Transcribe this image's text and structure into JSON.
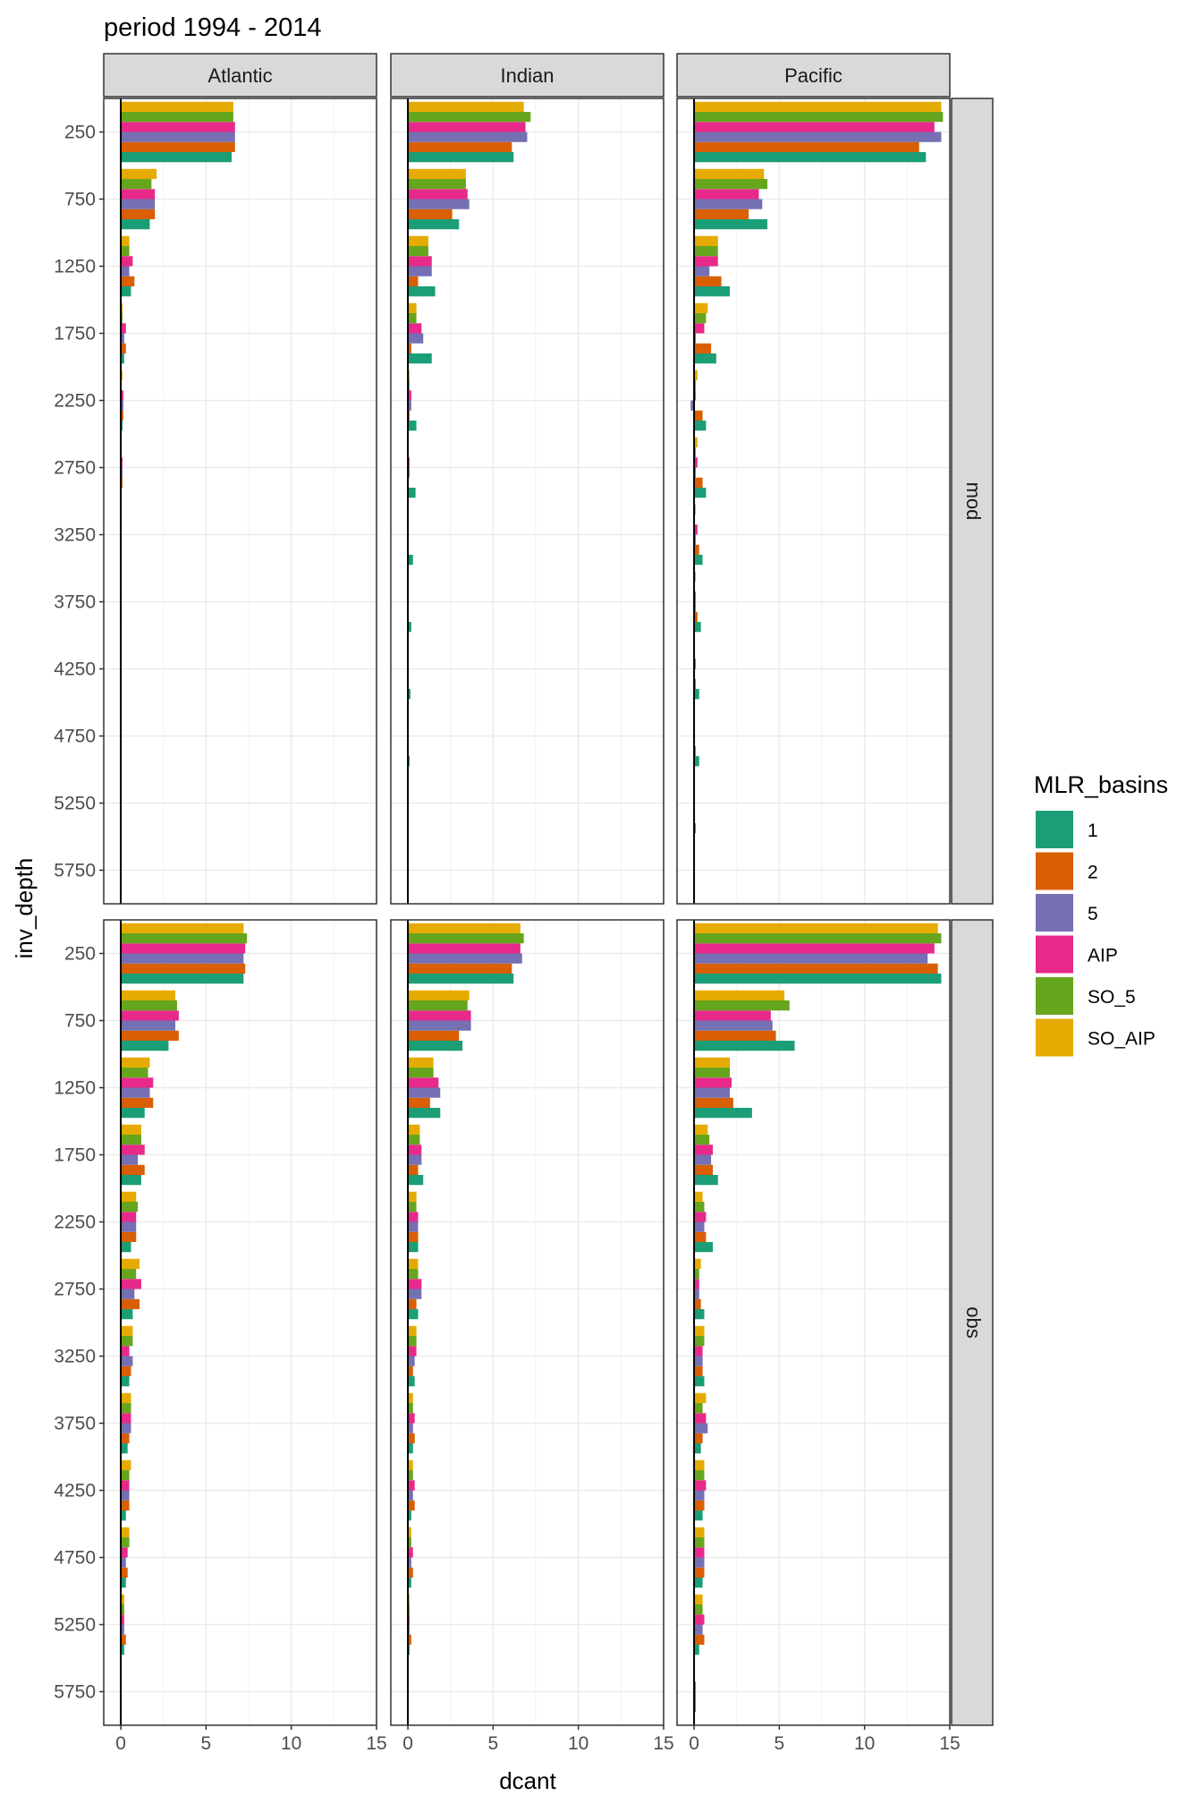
{
  "chart_data": {
    "type": "bar",
    "orientation": "horizontal",
    "title": "period 1994 - 2014",
    "xlabel": "dcant",
    "ylabel": "inv_depth",
    "xlim": [
      -1,
      15
    ],
    "x_ticks": [
      0,
      5,
      10,
      15
    ],
    "y_categories": [
      "250",
      "750",
      "1250",
      "1750",
      "2250",
      "2750",
      "3250",
      "3750",
      "4250",
      "4750",
      "5250",
      "5750"
    ],
    "grid": true,
    "legend": {
      "title": "MLR_basins",
      "position": "right",
      "entries": [
        "1",
        "2",
        "5",
        "AIP",
        "SO_5",
        "SO_AIP"
      ]
    },
    "colors": {
      "1": "#1b9e77",
      "2": "#d95f02",
      "5": "#7570b3",
      "AIP": "#e7298a",
      "SO_5": "#66a61e",
      "SO_AIP": "#e6ab02"
    },
    "facet_columns": [
      "Atlantic",
      "Indian",
      "Pacific"
    ],
    "facet_rows": [
      "mod",
      "obs"
    ],
    "panels": [
      {
        "basin": "Atlantic",
        "data_source": "mod",
        "series": [
          {
            "name": "1",
            "values": [
              6.5,
              1.7,
              0.6,
              0.2,
              0.1,
              0.05,
              0.05,
              0.05,
              0.03,
              0.03,
              0,
              0
            ]
          },
          {
            "name": "2",
            "values": [
              6.7,
              2.0,
              0.8,
              0.3,
              0.15,
              0.1,
              0.05,
              0.05,
              0,
              0,
              0,
              0
            ]
          },
          {
            "name": "5",
            "values": [
              6.7,
              2.0,
              0.5,
              0.2,
              0.15,
              0.1,
              0.05,
              0.05,
              0,
              0,
              0,
              0
            ]
          },
          {
            "name": "AIP",
            "values": [
              6.7,
              2.0,
              0.7,
              0.3,
              0.15,
              0.1,
              0.05,
              0.05,
              0,
              0,
              0,
              0
            ]
          },
          {
            "name": "SO_5",
            "values": [
              6.6,
              1.8,
              0.5,
              0.1,
              0.05,
              0.05,
              0.03,
              0.03,
              0,
              0,
              0,
              0
            ]
          },
          {
            "name": "SO_AIP",
            "values": [
              6.6,
              2.1,
              0.5,
              0.1,
              0.1,
              0.05,
              0.03,
              0.03,
              0,
              0,
              0,
              0
            ]
          }
        ]
      },
      {
        "basin": "Indian",
        "data_source": "mod",
        "series": [
          {
            "name": "1",
            "values": [
              6.2,
              3.0,
              1.6,
              1.4,
              0.5,
              0.45,
              0.3,
              0.2,
              0.15,
              0.1,
              0.05,
              0
            ]
          },
          {
            "name": "2",
            "values": [
              6.1,
              2.6,
              0.6,
              0.2,
              0.1,
              0.05,
              0.03,
              0,
              0,
              0,
              0,
              0
            ]
          },
          {
            "name": "5",
            "values": [
              7.0,
              3.6,
              1.4,
              0.9,
              0.2,
              0.1,
              0.05,
              0.03,
              0,
              0,
              0,
              0
            ]
          },
          {
            "name": "AIP",
            "values": [
              6.9,
              3.5,
              1.4,
              0.8,
              0.2,
              0.1,
              0.05,
              0.03,
              0,
              0,
              0,
              0
            ]
          },
          {
            "name": "SO_5",
            "values": [
              7.2,
              3.4,
              1.2,
              0.5,
              0.1,
              0.05,
              0.03,
              0,
              0,
              0,
              0,
              0
            ]
          },
          {
            "name": "SO_AIP",
            "values": [
              6.8,
              3.4,
              1.2,
              0.5,
              0.1,
              0.05,
              0.03,
              0,
              0,
              0,
              0,
              0
            ]
          }
        ]
      },
      {
        "basin": "Pacific",
        "data_source": "mod",
        "series": [
          {
            "name": "1",
            "values": [
              13.6,
              4.3,
              2.1,
              1.3,
              0.7,
              0.7,
              0.5,
              0.4,
              0.3,
              0.3,
              0.1,
              0
            ]
          },
          {
            "name": "2",
            "values": [
              13.2,
              3.2,
              1.6,
              1.0,
              0.5,
              0.5,
              0.3,
              0.2,
              0.1,
              0.1,
              0.05,
              0
            ]
          },
          {
            "name": "5",
            "values": [
              14.5,
              4.0,
              0.9,
              0.1,
              -0.2,
              0.1,
              0.1,
              0.1,
              0.05,
              0.05,
              0,
              0
            ]
          },
          {
            "name": "AIP",
            "values": [
              14.1,
              3.8,
              1.4,
              0.6,
              0.1,
              0.2,
              0.2,
              0.1,
              0.1,
              0.05,
              0.05,
              0
            ]
          },
          {
            "name": "SO_5",
            "values": [
              14.6,
              4.3,
              1.4,
              0.7,
              0.1,
              0.1,
              0.05,
              0.05,
              0.05,
              0.05,
              0,
              0
            ]
          },
          {
            "name": "SO_AIP",
            "values": [
              14.5,
              4.1,
              1.4,
              0.8,
              0.2,
              0.2,
              0.1,
              0.1,
              0.05,
              0.05,
              0,
              0
            ]
          }
        ]
      },
      {
        "basin": "Atlantic",
        "data_source": "obs",
        "series": [
          {
            "name": "1",
            "values": [
              7.2,
              2.8,
              1.4,
              1.2,
              0.6,
              0.7,
              0.5,
              0.4,
              0.3,
              0.3,
              0.2,
              0.05
            ]
          },
          {
            "name": "2",
            "values": [
              7.3,
              3.4,
              1.9,
              1.4,
              0.9,
              1.1,
              0.6,
              0.5,
              0.5,
              0.4,
              0.3,
              0.05
            ]
          },
          {
            "name": "5",
            "values": [
              7.2,
              3.2,
              1.7,
              1.0,
              0.9,
              0.8,
              0.7,
              0.6,
              0.5,
              0.3,
              0.2,
              0.05
            ]
          },
          {
            "name": "AIP",
            "values": [
              7.3,
              3.4,
              1.9,
              1.4,
              0.9,
              1.2,
              0.5,
              0.6,
              0.5,
              0.4,
              0.2,
              0.05
            ]
          },
          {
            "name": "SO_5",
            "values": [
              7.4,
              3.3,
              1.6,
              1.2,
              1.0,
              0.9,
              0.7,
              0.6,
              0.5,
              0.5,
              0.2,
              0.05
            ]
          },
          {
            "name": "SO_AIP",
            "values": [
              7.2,
              3.2,
              1.7,
              1.2,
              0.9,
              1.1,
              0.7,
              0.6,
              0.6,
              0.5,
              0.2,
              0.05
            ]
          }
        ]
      },
      {
        "basin": "Indian",
        "data_source": "obs",
        "series": [
          {
            "name": "1",
            "values": [
              6.2,
              3.2,
              1.9,
              0.9,
              0.6,
              0.6,
              0.4,
              0.3,
              0.2,
              0.2,
              0.1,
              0.05
            ]
          },
          {
            "name": "2",
            "values": [
              6.1,
              3.0,
              1.3,
              0.6,
              0.6,
              0.5,
              0.3,
              0.4,
              0.4,
              0.3,
              0.2,
              0.05
            ]
          },
          {
            "name": "5",
            "values": [
              6.7,
              3.7,
              1.9,
              0.8,
              0.6,
              0.8,
              0.4,
              0.3,
              0.3,
              0.2,
              0.1,
              0.05
            ]
          },
          {
            "name": "AIP",
            "values": [
              6.6,
              3.7,
              1.8,
              0.8,
              0.6,
              0.8,
              0.5,
              0.4,
              0.4,
              0.3,
              0.1,
              0.05
            ]
          },
          {
            "name": "SO_5",
            "values": [
              6.8,
              3.5,
              1.5,
              0.7,
              0.5,
              0.6,
              0.5,
              0.3,
              0.3,
              0.2,
              0.1,
              0.05
            ]
          },
          {
            "name": "SO_AIP",
            "values": [
              6.6,
              3.6,
              1.5,
              0.7,
              0.5,
              0.6,
              0.5,
              0.3,
              0.3,
              0.2,
              0.1,
              0.05
            ]
          }
        ]
      },
      {
        "basin": "Pacific",
        "data_source": "obs",
        "series": [
          {
            "name": "1",
            "values": [
              14.5,
              5.9,
              3.4,
              1.4,
              1.1,
              0.6,
              0.6,
              0.4,
              0.5,
              0.5,
              0.3,
              0.05
            ]
          },
          {
            "name": "2",
            "values": [
              14.3,
              4.8,
              2.3,
              1.1,
              0.7,
              0.4,
              0.5,
              0.5,
              0.6,
              0.6,
              0.6,
              0.1
            ]
          },
          {
            "name": "5",
            "values": [
              13.7,
              4.6,
              2.1,
              1.0,
              0.6,
              0.3,
              0.5,
              0.8,
              0.6,
              0.6,
              0.5,
              0.1
            ]
          },
          {
            "name": "AIP",
            "values": [
              14.1,
              4.5,
              2.2,
              1.1,
              0.7,
              0.3,
              0.5,
              0.7,
              0.7,
              0.6,
              0.6,
              0.1
            ]
          },
          {
            "name": "SO_5",
            "values": [
              14.5,
              5.6,
              2.1,
              0.9,
              0.6,
              0.3,
              0.6,
              0.5,
              0.6,
              0.6,
              0.5,
              0.05
            ]
          },
          {
            "name": "SO_AIP",
            "values": [
              14.3,
              5.3,
              2.1,
              0.8,
              0.5,
              0.4,
              0.6,
              0.7,
              0.6,
              0.6,
              0.5,
              0.05
            ]
          }
        ]
      }
    ]
  }
}
